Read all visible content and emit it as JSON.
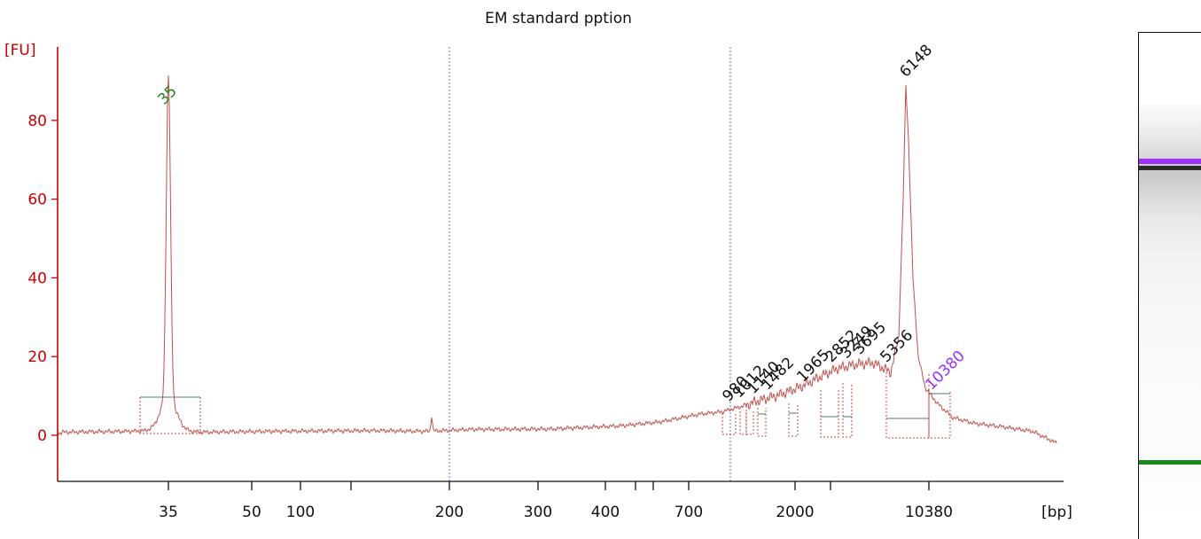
{
  "chart_data": {
    "type": "line",
    "title": "EM standard pption",
    "ylabel": "[FU]",
    "xlabel": "[bp]",
    "ylim": [
      -11,
      98
    ],
    "yticks": [
      0,
      20,
      40,
      60,
      80
    ],
    "xticks": [
      "35",
      "50",
      "100",
      "200",
      "300",
      "400",
      "700",
      "2000",
      "10380"
    ],
    "grid": false,
    "series": [
      {
        "x": [
          "35",
          "50",
          "100",
          "200",
          "300",
          "400",
          "700",
          "980",
          "1012",
          "1140",
          "1482",
          "1965",
          "2852",
          "3249",
          "3695",
          "5356",
          "6148",
          "10380"
        ],
        "values": [
          82,
          0.5,
          1,
          1.5,
          1.5,
          2,
          4,
          7,
          8,
          9,
          10,
          12,
          17,
          18,
          19,
          17,
          89,
          10
        ]
      }
    ],
    "peak_labels": [
      {
        "label": "35",
        "value": 82,
        "color": "#1a8a1a"
      },
      {
        "label": "980",
        "value": 7,
        "color": "#111111"
      },
      {
        "label": "1012",
        "value": 8,
        "color": "#111111"
      },
      {
        "label": "1140",
        "value": 9,
        "color": "#111111"
      },
      {
        "label": "1482",
        "value": 10,
        "color": "#111111"
      },
      {
        "label": "1965",
        "value": 12,
        "color": "#111111"
      },
      {
        "label": "2852",
        "value": 17,
        "color": "#111111"
      },
      {
        "label": "3249",
        "value": 18,
        "color": "#111111"
      },
      {
        "label": "3695",
        "value": 19,
        "color": "#111111"
      },
      {
        "label": "5356",
        "value": 17,
        "color": "#111111"
      },
      {
        "label": "6148",
        "value": 89,
        "color": "#111111"
      },
      {
        "label": "10380",
        "value": 10,
        "color": "#9b30ff"
      }
    ],
    "colors": {
      "axis": "#cc0000",
      "trace": "#c0504d",
      "marker": "#1a8a1a",
      "upper_marker": "#9b30ff",
      "baseline": "#6a9a8a",
      "divider": "#7070cc"
    }
  },
  "gel": {
    "colors": {
      "upper_marker": "#9b30ff",
      "main_band": "#111111",
      "lower_marker": "#1a8a1a"
    }
  }
}
